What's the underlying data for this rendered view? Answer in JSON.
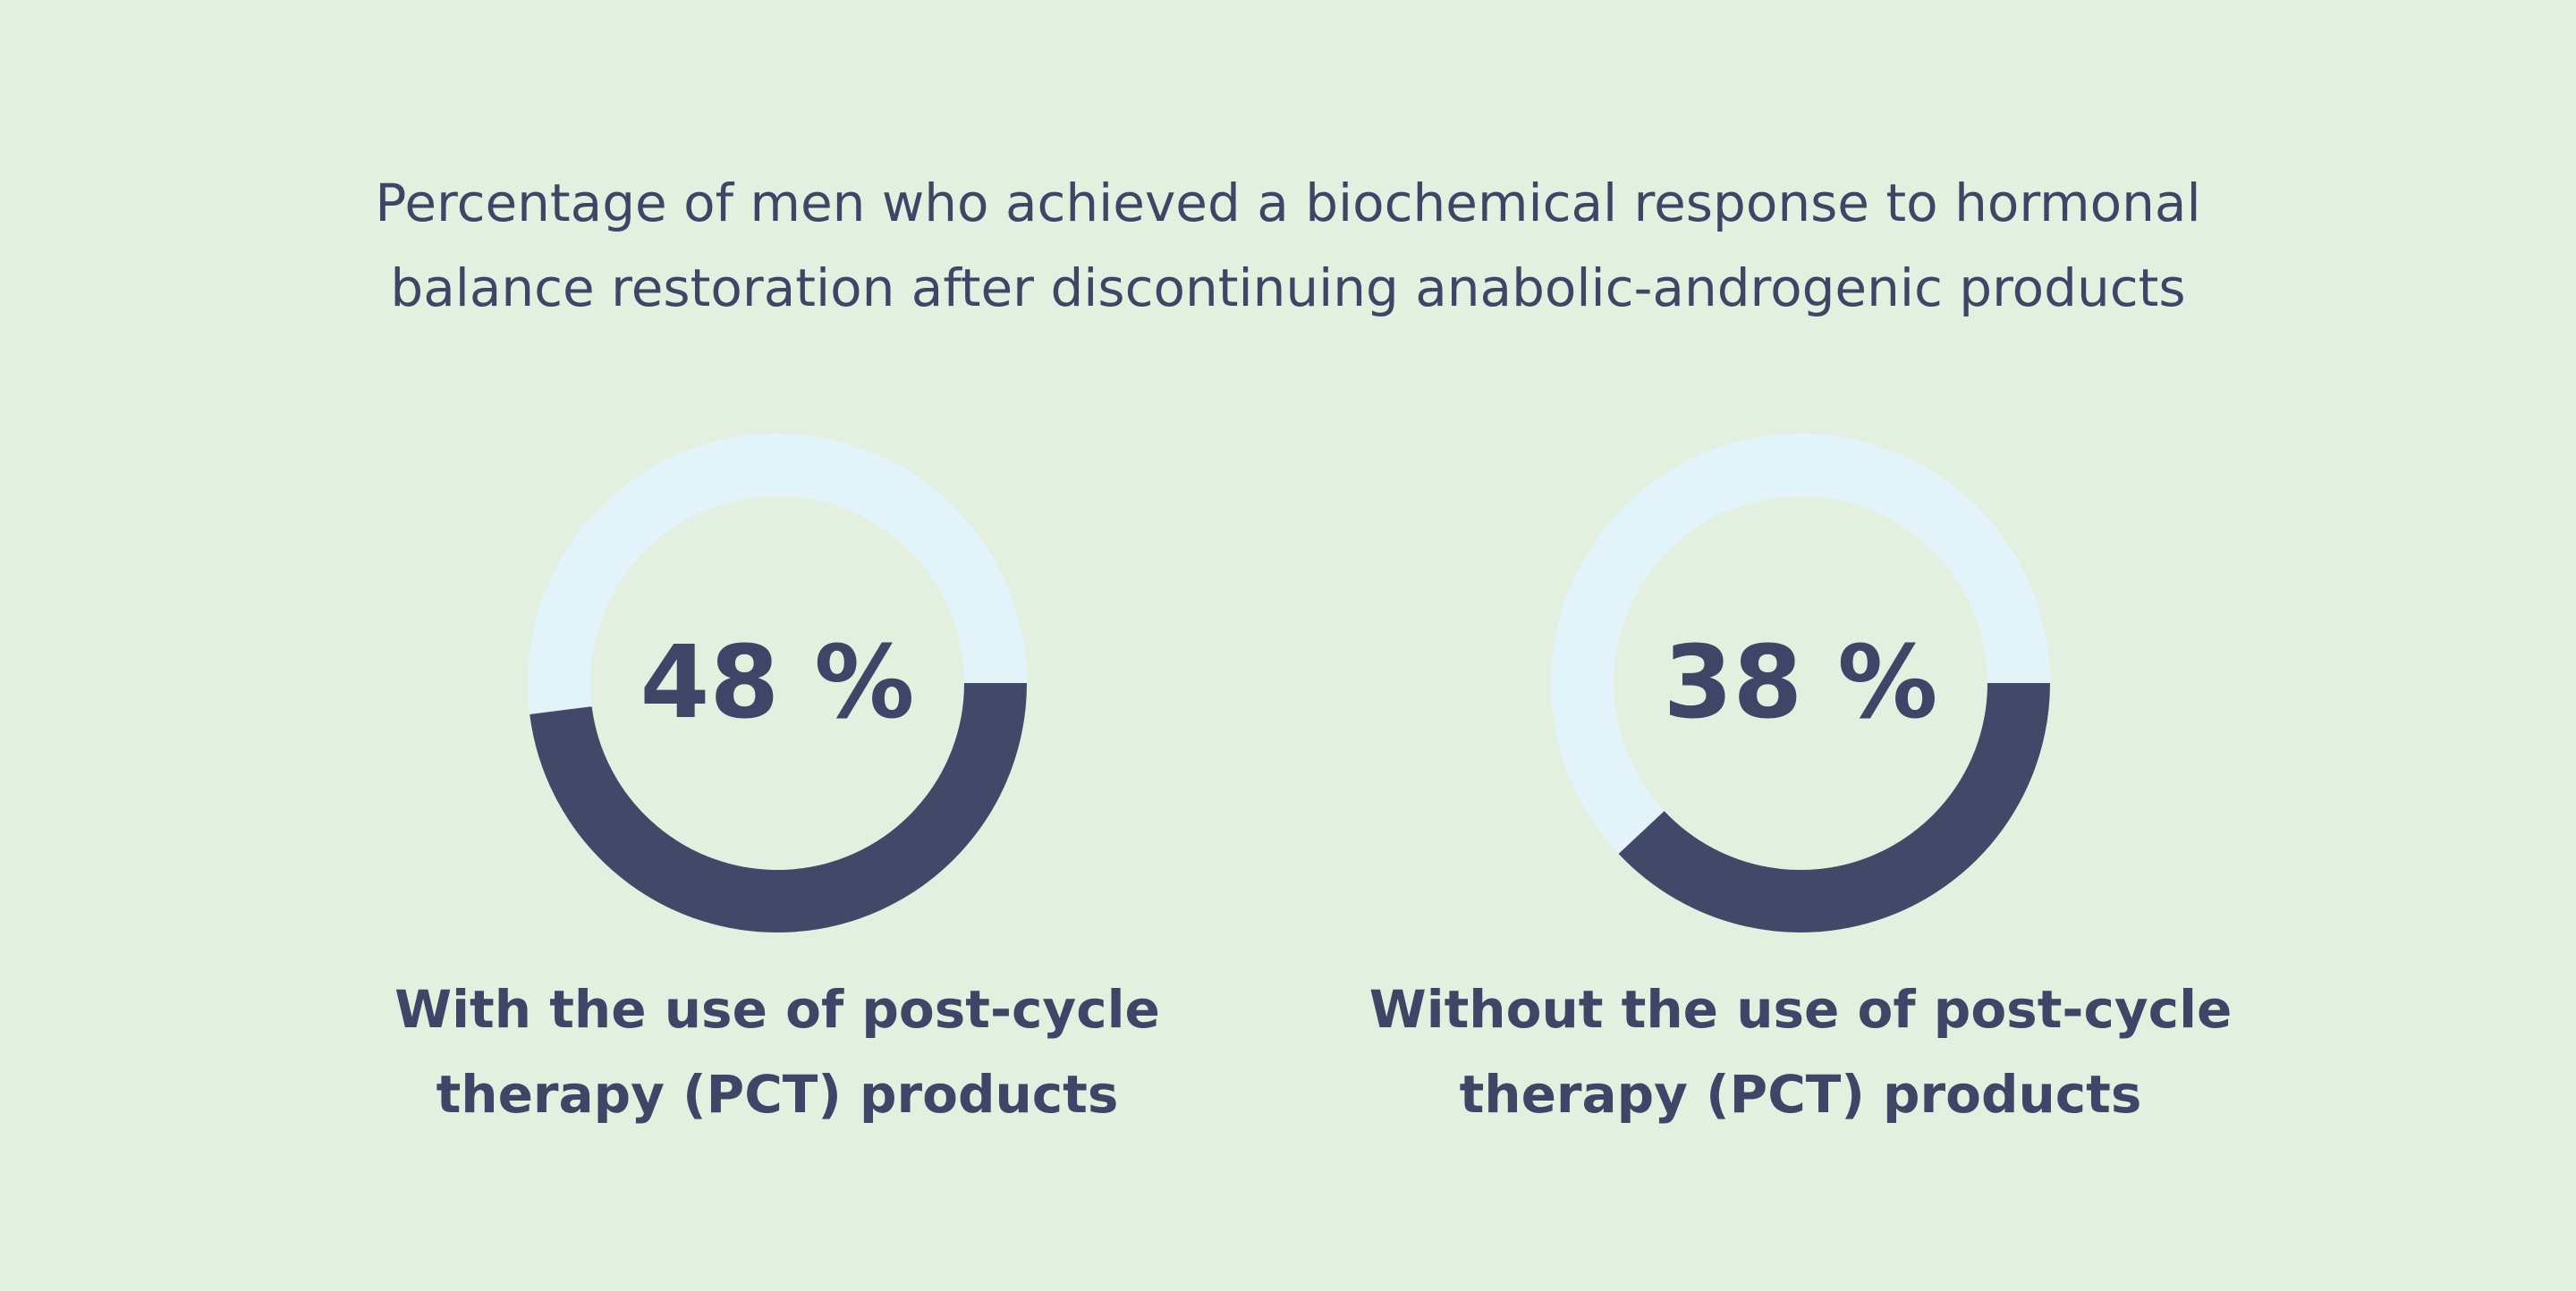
{
  "title": "Percentage of men who achieved a biochemical response to hormonal balance restoration after discontinuing anabolic-androgenic products",
  "chart_data": [
    {
      "type": "donut",
      "categories": [
        "With the use of post-cycle therapy (PCT) products"
      ],
      "values": [
        48
      ],
      "value_labels": [
        "48 %"
      ],
      "ylim": [
        0,
        100
      ],
      "color": "#414868",
      "track_color": "#e2f4fa"
    },
    {
      "type": "donut",
      "categories": [
        "Without the use of post-cycle therapy (PCT) products"
      ],
      "values": [
        38
      ],
      "value_labels": [
        "38 %"
      ],
      "ylim": [
        0,
        100
      ],
      "color": "#414868",
      "track_color": "#e2f4fa"
    }
  ]
}
